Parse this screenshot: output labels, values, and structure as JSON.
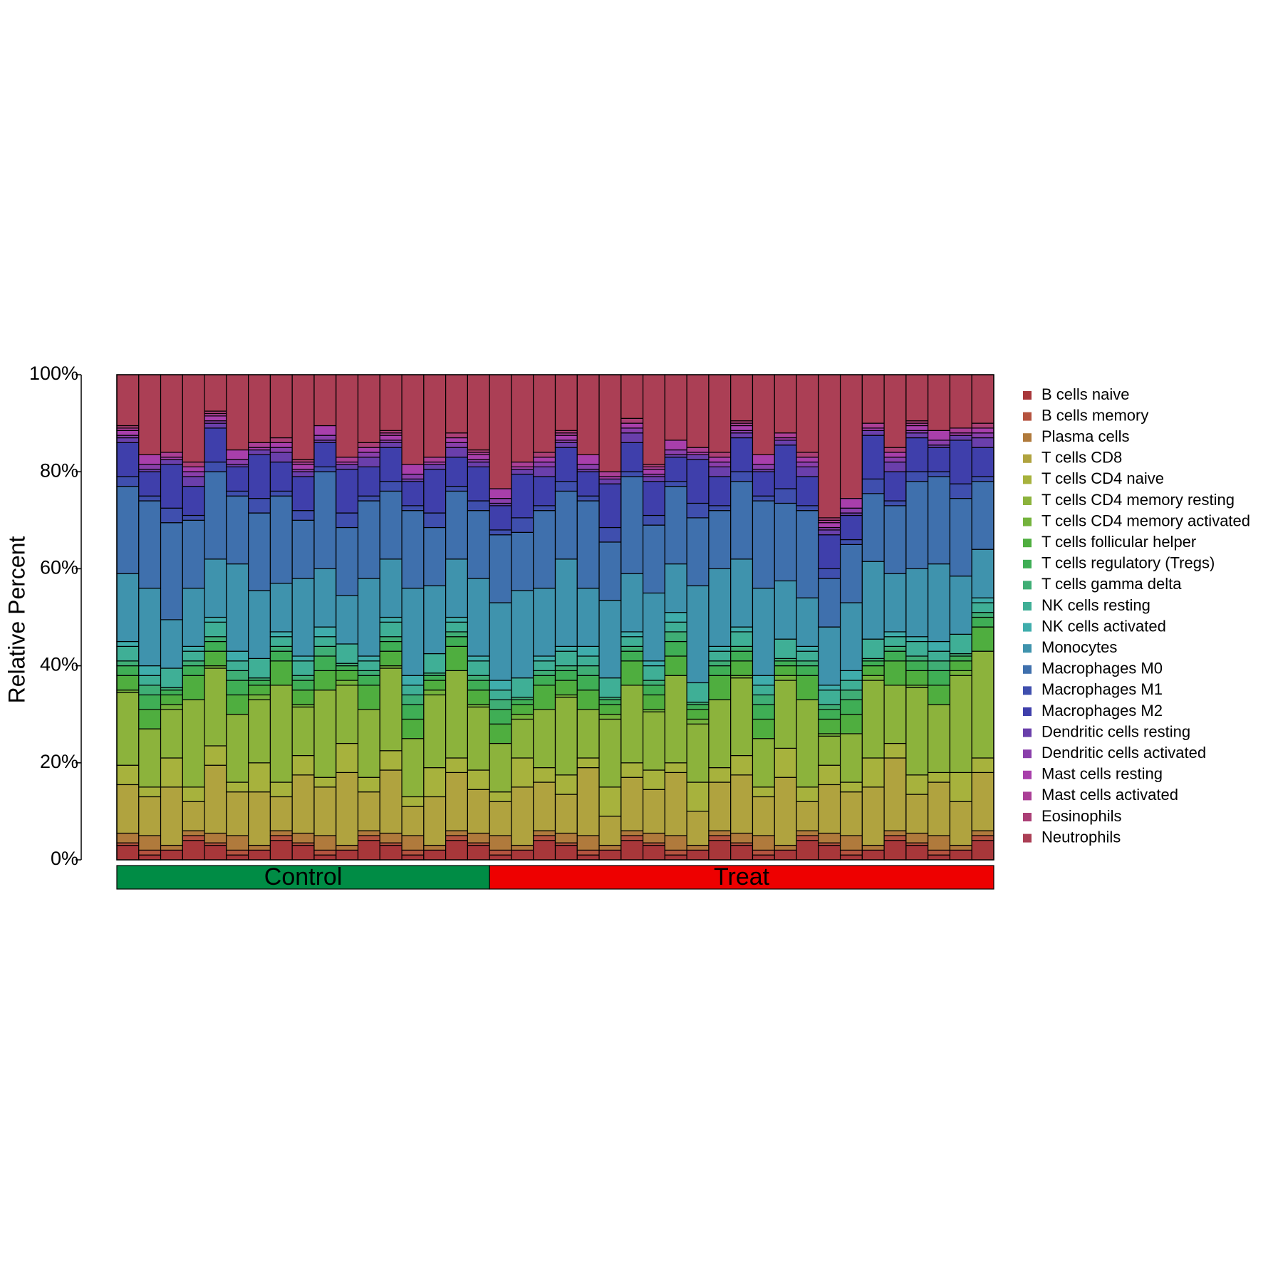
{
  "chart_data": {
    "type": "stacked_bar",
    "ylabel": "Relative Percent",
    "ylim": [
      0,
      100
    ],
    "yticks": [
      {
        "value": 0,
        "label": "0%"
      },
      {
        "value": 20,
        "label": "20%"
      },
      {
        "value": 40,
        "label": "40%"
      },
      {
        "value": 60,
        "label": "60%"
      },
      {
        "value": 80,
        "label": "80%"
      },
      {
        "value": 100,
        "label": "100%"
      }
    ],
    "categories": [
      null,
      null,
      null,
      null,
      null,
      null,
      null,
      null,
      null,
      null,
      null,
      null,
      null,
      null,
      null,
      null,
      null,
      null,
      null,
      null,
      null,
      null,
      null,
      null,
      null,
      null,
      null,
      null,
      null,
      null,
      null,
      null,
      null,
      null,
      null,
      null,
      null,
      null,
      null,
      null
    ],
    "groups": [
      {
        "name": "Control",
        "color": "#008c45",
        "size": 17
      },
      {
        "name": "Treat",
        "color": "#ee0000",
        "size": 23
      }
    ],
    "series": [
      {
        "name": "B cells naive",
        "color": "#a8373a",
        "values": [
          3,
          1,
          2,
          4,
          3,
          1,
          2,
          4,
          3,
          1,
          2,
          4,
          3,
          1,
          2,
          4,
          3,
          1,
          2,
          4,
          3,
          1,
          2,
          4,
          3,
          1,
          2,
          4,
          3,
          1,
          2,
          4,
          3,
          1,
          2,
          4,
          3,
          1,
          2,
          4
        ]
      },
      {
        "name": "B cells memory",
        "color": "#b5533f",
        "values": [
          0.5,
          1,
          0,
          1,
          0.5,
          1,
          0,
          1,
          0.5,
          1,
          0,
          1,
          0.5,
          1,
          0,
          1,
          0.5,
          1,
          0,
          1,
          0.5,
          1,
          0,
          1,
          0.5,
          1,
          0,
          1,
          0.5,
          1,
          0,
          1,
          0.5,
          1,
          0,
          1,
          0.5,
          1,
          0,
          1
        ]
      },
      {
        "name": "Plasma cells",
        "color": "#b07a3c",
        "values": [
          2,
          3,
          1,
          1,
          2,
          3,
          1,
          1,
          2,
          3,
          1,
          1,
          2,
          3,
          1,
          1,
          2,
          3,
          1,
          1,
          2,
          3,
          1,
          1,
          2,
          3,
          1,
          1,
          2,
          3,
          1,
          1,
          2,
          3,
          1,
          1,
          2,
          3,
          1,
          1
        ]
      },
      {
        "name": "T cells CD8",
        "color": "#b0a33f",
        "values": [
          10,
          8,
          12,
          6,
          14,
          9,
          11,
          7,
          12,
          10,
          15,
          8,
          13,
          6,
          10,
          12,
          9,
          7,
          12,
          10,
          8,
          14,
          6,
          11,
          9,
          13,
          7,
          10,
          12,
          8,
          14,
          6,
          10,
          9,
          12,
          15,
          8,
          11,
          9,
          12
        ]
      },
      {
        "name": "T cells CD4 naive",
        "color": "#a7b23d",
        "values": [
          4,
          2,
          6,
          3,
          4,
          2,
          6,
          3,
          4,
          2,
          6,
          3,
          4,
          2,
          6,
          3,
          4,
          2,
          6,
          3,
          4,
          2,
          6,
          3,
          4,
          2,
          6,
          3,
          4,
          2,
          6,
          3,
          4,
          2,
          6,
          3,
          4,
          2,
          6,
          3
        ]
      },
      {
        "name": "T cells CD4 memory resting",
        "color": "#8cb33c",
        "values": [
          15,
          12,
          10,
          18,
          16,
          14,
          13,
          20,
          10,
          18,
          12,
          14,
          17,
          12,
          15,
          18,
          13,
          10,
          8,
          12,
          16,
          10,
          14,
          16,
          12,
          18,
          12,
          14,
          16,
          10,
          14,
          18,
          6,
          10,
          16,
          12,
          18,
          14,
          20,
          22
        ]
      },
      {
        "name": "T cells CD4 memory activated",
        "color": "#74b33c",
        "values": [
          0.5,
          0,
          1,
          0,
          0.5,
          0,
          1,
          0,
          0.5,
          0,
          1,
          0,
          0.5,
          0,
          1,
          0,
          0.5,
          0,
          1,
          0,
          0.5,
          0,
          1,
          0,
          0.5,
          0,
          1,
          0,
          0.5,
          0,
          1,
          0,
          0.5,
          0,
          1,
          0,
          0.5,
          0,
          1,
          0
        ]
      },
      {
        "name": "T cells follicular helper",
        "color": "#4fae3f",
        "values": [
          3,
          4,
          2,
          5,
          3,
          4,
          2,
          5,
          3,
          4,
          2,
          5,
          3,
          4,
          2,
          5,
          3,
          4,
          2,
          5,
          3,
          4,
          2,
          5,
          3,
          4,
          2,
          5,
          3,
          4,
          2,
          5,
          3,
          4,
          2,
          5,
          3,
          4,
          2,
          5
        ]
      },
      {
        "name": "T cells regulatory (Tregs)",
        "color": "#3fae55",
        "values": [
          2,
          3,
          1,
          2,
          2,
          3,
          1,
          2,
          2,
          3,
          1,
          2,
          2,
          3,
          1,
          2,
          2,
          3,
          1,
          2,
          2,
          3,
          1,
          2,
          2,
          3,
          1,
          2,
          2,
          3,
          1,
          2,
          2,
          3,
          1,
          2,
          2,
          3,
          1,
          2
        ]
      },
      {
        "name": "T cells gamma delta",
        "color": "#3fae75",
        "values": [
          1,
          2,
          0.5,
          1,
          1,
          2,
          0.5,
          1,
          1,
          2,
          0.5,
          1,
          1,
          2,
          0.5,
          1,
          1,
          2,
          0.5,
          1,
          1,
          2,
          0.5,
          1,
          1,
          2,
          0.5,
          1,
          1,
          2,
          0.5,
          1,
          1,
          2,
          0.5,
          1,
          1,
          2,
          0.5,
          1
        ]
      },
      {
        "name": "NK cells resting",
        "color": "#3faf96",
        "values": [
          3,
          2,
          4,
          2,
          3,
          2,
          4,
          2,
          3,
          2,
          4,
          2,
          3,
          2,
          4,
          2,
          3,
          2,
          4,
          2,
          3,
          2,
          4,
          2,
          3,
          2,
          4,
          2,
          3,
          2,
          4,
          2,
          3,
          2,
          4,
          2,
          3,
          2,
          4,
          2
        ]
      },
      {
        "name": "NK cells activated",
        "color": "#3fadac",
        "values": [
          1,
          2,
          0,
          1,
          1,
          2,
          0,
          1,
          1,
          2,
          0,
          1,
          1,
          2,
          0,
          1,
          1,
          2,
          0,
          1,
          1,
          2,
          0,
          1,
          1,
          2,
          0,
          1,
          1,
          2,
          0,
          1,
          1,
          2,
          0,
          1,
          1,
          2,
          0,
          1
        ]
      },
      {
        "name": "Monocytes",
        "color": "#3f93ad",
        "values": [
          14,
          16,
          10,
          12,
          12,
          18,
          14,
          10,
          16,
          12,
          10,
          16,
          12,
          18,
          14,
          12,
          16,
          16,
          18,
          14,
          18,
          12,
          16,
          12,
          14,
          10,
          20,
          16,
          14,
          18,
          12,
          10,
          12,
          14,
          16,
          12,
          14,
          16,
          12,
          10
        ]
      },
      {
        "name": "Macrophages M0",
        "color": "#3f70ad",
        "values": [
          18,
          18,
          20,
          14,
          18,
          14,
          16,
          18,
          12,
          20,
          14,
          16,
          14,
          16,
          12,
          14,
          14,
          14,
          12,
          16,
          14,
          18,
          12,
          20,
          14,
          16,
          14,
          12,
          16,
          18,
          16,
          18,
          10,
          12,
          14,
          14,
          18,
          18,
          16,
          14
        ]
      },
      {
        "name": "Macrophages M1",
        "color": "#3f4fae",
        "values": [
          2,
          1,
          3,
          1,
          2,
          1,
          3,
          1,
          2,
          1,
          3,
          1,
          2,
          1,
          3,
          1,
          2,
          1,
          3,
          1,
          2,
          1,
          3,
          1,
          2,
          1,
          3,
          1,
          2,
          1,
          3,
          1,
          2,
          1,
          3,
          1,
          2,
          1,
          3,
          1
        ]
      },
      {
        "name": "Macrophages M2",
        "color": "#3f3fab",
        "values": [
          7,
          5,
          9,
          6,
          7,
          5,
          9,
          6,
          7,
          5,
          9,
          6,
          7,
          5,
          9,
          6,
          7,
          5,
          9,
          6,
          7,
          5,
          9,
          6,
          7,
          5,
          9,
          6,
          7,
          5,
          9,
          6,
          7,
          5,
          9,
          6,
          7,
          5,
          9,
          6
        ]
      },
      {
        "name": "Dendritic cells resting",
        "color": "#6a3fab",
        "values": [
          1,
          0.5,
          1,
          2,
          1,
          0.5,
          1,
          2,
          1,
          0.5,
          1,
          2,
          1,
          0.5,
          1,
          2,
          1,
          0.5,
          1,
          2,
          1,
          0.5,
          1,
          2,
          1,
          0.5,
          1,
          2,
          1,
          0.5,
          1,
          2,
          1,
          0.5,
          1,
          2,
          1,
          0.5,
          1,
          2
        ]
      },
      {
        "name": "Dendritic cells activated",
        "color": "#8a3fab",
        "values": [
          0.5,
          1,
          0,
          1,
          0.5,
          1,
          0,
          1,
          0.5,
          1,
          0,
          1,
          0.5,
          1,
          0,
          1,
          0.5,
          1,
          0,
          1,
          0.5,
          1,
          0,
          1,
          0.5,
          1,
          0,
          1,
          0.5,
          1,
          0,
          1,
          0.5,
          1,
          0,
          1,
          0.5,
          1,
          0,
          1
        ]
      },
      {
        "name": "Mast cells resting",
        "color": "#a83fab",
        "values": [
          1,
          2,
          0.5,
          1,
          1,
          2,
          0.5,
          1,
          1,
          2,
          0.5,
          1,
          1,
          2,
          0.5,
          1,
          1,
          2,
          0.5,
          1,
          1,
          2,
          0.5,
          1,
          1,
          2,
          0.5,
          1,
          1,
          2,
          0.5,
          1,
          1,
          2,
          0.5,
          1,
          1,
          2,
          0.5,
          1
        ]
      },
      {
        "name": "Mast cells activated",
        "color": "#ab3f96",
        "values": [
          0.5,
          0,
          1,
          0,
          0.5,
          0,
          1,
          0,
          0.5,
          0,
          1,
          0,
          0.5,
          0,
          1,
          0,
          0.5,
          0,
          1,
          0,
          0.5,
          0,
          1,
          0,
          0.5,
          0,
          1,
          0,
          0.5,
          0,
          1,
          0,
          0.5,
          0,
          1,
          0,
          0.5,
          0,
          1,
          0
        ]
      },
      {
        "name": "Eosinophils",
        "color": "#ab3f76",
        "values": [
          0.5,
          0,
          0,
          1,
          0.5,
          0,
          0,
          1,
          0.5,
          0,
          0,
          1,
          0.5,
          0,
          0,
          1,
          0.5,
          0,
          0,
          1,
          0.5,
          0,
          0,
          1,
          0.5,
          0,
          0,
          1,
          0.5,
          0,
          0,
          1,
          0.5,
          0,
          0,
          1,
          0.5,
          0,
          0,
          1
        ]
      },
      {
        "name": "Neutrophils",
        "color": "#ab3f55",
        "values": [
          10.5,
          16.5,
          16,
          18,
          7.5,
          15.5,
          14,
          13,
          17.5,
          10.5,
          17,
          14,
          11.5,
          18.5,
          17,
          12,
          15.5,
          23.5,
          18,
          16,
          11.5,
          16.5,
          20,
          9,
          18.5,
          13.5,
          15,
          16,
          9.5,
          16.5,
          12,
          16,
          29.5,
          25.5,
          10,
          15,
          9.5,
          11.5,
          11,
          10
        ]
      }
    ]
  }
}
